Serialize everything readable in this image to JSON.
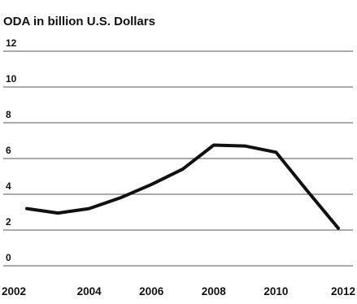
{
  "chart_data": {
    "type": "line",
    "title": "ODA in billion U.S. Dollars",
    "xlabel": "",
    "ylabel": "",
    "x": [
      2002,
      2003,
      2004,
      2005,
      2006,
      2007,
      2008,
      2009,
      2010,
      2011,
      2012
    ],
    "series": [
      {
        "values": [
          3.2,
          2.95,
          3.2,
          3.8,
          4.55,
          5.4,
          6.75,
          6.7,
          6.35,
          4.2,
          2.1
        ]
      }
    ],
    "xlim": [
      2002,
      2012
    ],
    "ylim": [
      0,
      12
    ],
    "x_ticks": [
      "2002",
      "2004",
      "2006",
      "2008",
      "2010",
      "2012"
    ],
    "y_ticks": [
      "0",
      "2",
      "4",
      "6",
      "8",
      "10",
      "12"
    ],
    "grid": "horizontal",
    "legend": "none",
    "colors": {
      "line": "#111111",
      "grid": "#555555",
      "text": "#111111"
    }
  }
}
